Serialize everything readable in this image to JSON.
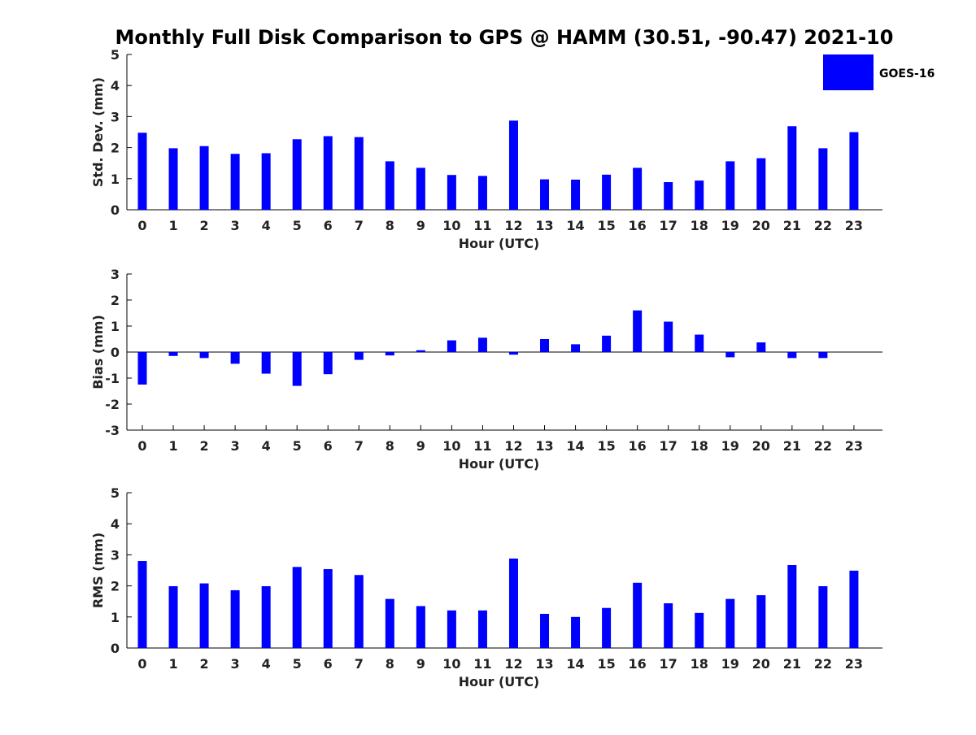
{
  "title": "Monthly Full Disk Comparison to GPS @ HAMM (30.51, -90.47) 2021-10",
  "legend": {
    "label": "GOES-16",
    "color": "#0000ff",
    "placement": "top-right"
  },
  "chart_data": [
    {
      "type": "bar",
      "name": "std-dev",
      "xlabel": "Hour (UTC)",
      "ylabel": "Std. Dev. (mm)",
      "ylim": [
        0,
        5
      ],
      "yticks": [
        "0",
        "1",
        "2",
        "3",
        "4",
        "5"
      ],
      "categories": [
        "0",
        "1",
        "2",
        "3",
        "4",
        "5",
        "6",
        "7",
        "8",
        "9",
        "10",
        "11",
        "12",
        "13",
        "14",
        "15",
        "16",
        "17",
        "18",
        "19",
        "20",
        "21",
        "22",
        "23"
      ],
      "series": [
        {
          "name": "GOES-16",
          "values": [
            2.48,
            1.98,
            2.05,
            1.8,
            1.82,
            2.27,
            2.37,
            2.34,
            1.56,
            1.35,
            1.12,
            1.09,
            2.87,
            0.98,
            0.97,
            1.13,
            1.35,
            0.89,
            0.94,
            1.56,
            1.66,
            2.69,
            1.98,
            2.5
          ]
        }
      ],
      "grid": false
    },
    {
      "type": "bar",
      "name": "bias",
      "xlabel": "Hour (UTC)",
      "ylabel": "Bias (mm)",
      "ylim": [
        -3,
        3
      ],
      "yticks": [
        "-3",
        "-2",
        "-1",
        "0",
        "1",
        "2",
        "3"
      ],
      "categories": [
        "0",
        "1",
        "2",
        "3",
        "4",
        "5",
        "6",
        "7",
        "8",
        "9",
        "10",
        "11",
        "12",
        "13",
        "14",
        "15",
        "16",
        "17",
        "18",
        "19",
        "20",
        "21",
        "22",
        "23"
      ],
      "series": [
        {
          "name": "GOES-16",
          "values": [
            -1.25,
            -0.15,
            -0.23,
            -0.45,
            -0.83,
            -1.3,
            -0.85,
            -0.3,
            -0.13,
            0.07,
            0.45,
            0.55,
            -0.1,
            0.5,
            0.3,
            0.63,
            1.6,
            1.17,
            0.67,
            -0.2,
            0.37,
            -0.23,
            -0.23,
            0
          ]
        }
      ],
      "zero_line": true,
      "grid": false
    },
    {
      "type": "bar",
      "name": "rms",
      "xlabel": "Hour (UTC)",
      "ylabel": "RMS (mm)",
      "ylim": [
        0,
        5
      ],
      "yticks": [
        "0",
        "1",
        "2",
        "3",
        "4",
        "5"
      ],
      "categories": [
        "0",
        "1",
        "2",
        "3",
        "4",
        "5",
        "6",
        "7",
        "8",
        "9",
        "10",
        "11",
        "12",
        "13",
        "14",
        "15",
        "16",
        "17",
        "18",
        "19",
        "20",
        "21",
        "22",
        "23"
      ],
      "series": [
        {
          "name": "GOES-16",
          "values": [
            2.8,
            1.99,
            2.08,
            1.86,
            1.99,
            2.61,
            2.54,
            2.35,
            1.58,
            1.35,
            1.21,
            1.21,
            2.88,
            1.1,
            1.0,
            1.29,
            2.1,
            1.44,
            1.13,
            1.58,
            1.7,
            2.67,
            1.99,
            2.49
          ]
        }
      ],
      "grid": false
    }
  ]
}
